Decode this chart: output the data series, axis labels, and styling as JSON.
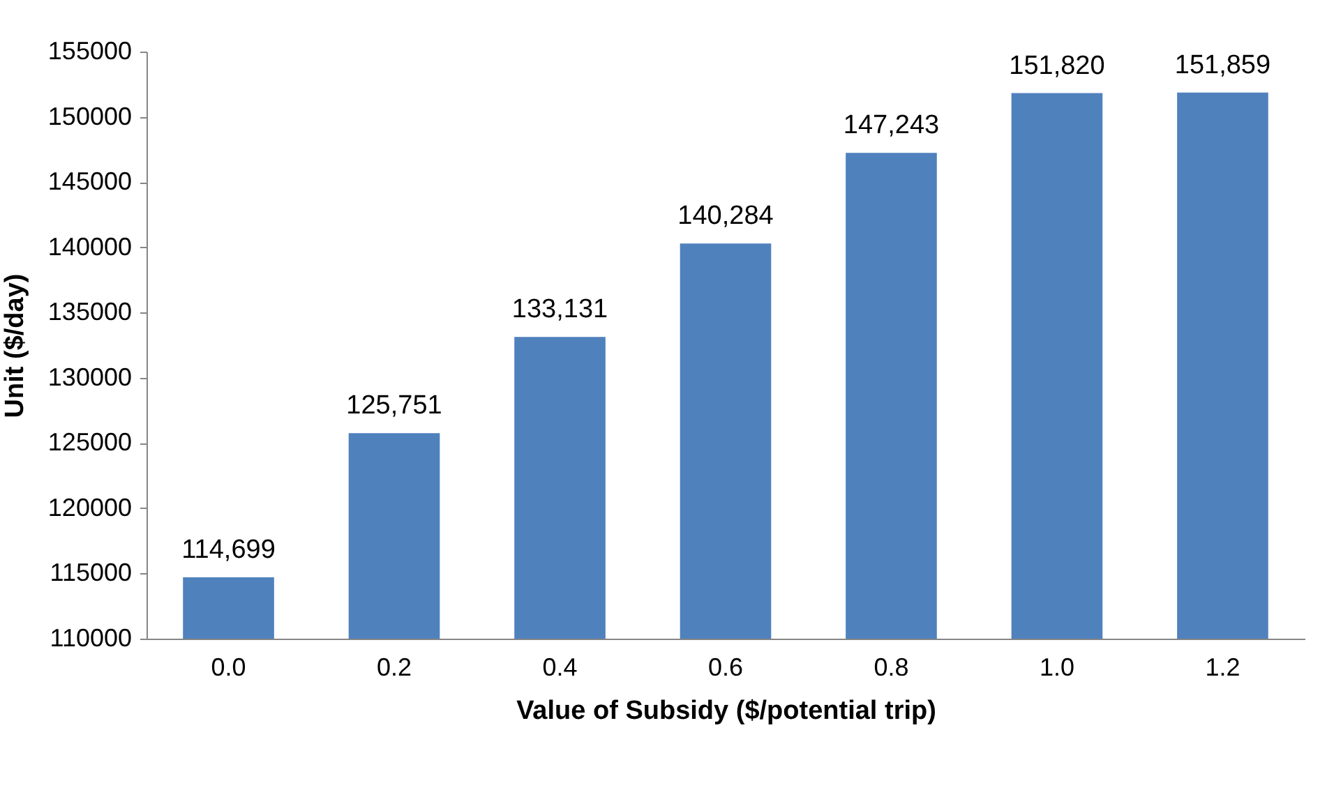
{
  "chart_data": {
    "type": "bar",
    "xlabel": "Value of Subsidy ($/potential trip)",
    "ylabel": "Unit ($/day)",
    "categories": [
      "0.0",
      "0.2",
      "0.4",
      "0.6",
      "0.8",
      "1.0",
      "1.2"
    ],
    "values": [
      114699,
      125751,
      133131,
      140284,
      147243,
      151820,
      151859
    ],
    "value_labels": [
      "114,699",
      "125,751",
      "133,131",
      "140,284",
      "147,243",
      "151,820",
      "151,859"
    ],
    "color": "#4f81bd",
    "ylim": [
      110000,
      155000
    ],
    "yticks": [
      110000,
      115000,
      120000,
      125000,
      130000,
      135000,
      140000,
      145000,
      150000,
      155000
    ]
  }
}
